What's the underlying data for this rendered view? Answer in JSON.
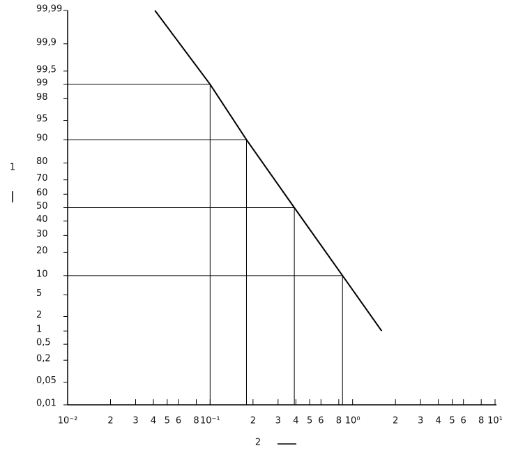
{
  "chart_data": {
    "type": "probability",
    "xlabel": "2",
    "ylabel": "1",
    "xscale": "log",
    "yscale": "probit",
    "xlim": [
      0.01,
      10
    ],
    "ylim": [
      0.01,
      99.99
    ],
    "xticks": [
      {
        "value": 0.01,
        "label": "10⁻²"
      },
      {
        "value": 0.02,
        "label": "2"
      },
      {
        "value": 0.03,
        "label": "3"
      },
      {
        "value": 0.04,
        "label": "4"
      },
      {
        "value": 0.05,
        "label": "5"
      },
      {
        "value": 0.06,
        "label": "6"
      },
      {
        "value": 0.08,
        "label": "8"
      },
      {
        "value": 0.1,
        "label": "10⁻¹"
      },
      {
        "value": 0.2,
        "label": "2"
      },
      {
        "value": 0.3,
        "label": "3"
      },
      {
        "value": 0.4,
        "label": "4"
      },
      {
        "value": 0.5,
        "label": "5"
      },
      {
        "value": 0.6,
        "label": "6"
      },
      {
        "value": 0.8,
        "label": "8"
      },
      {
        "value": 1,
        "label": "10⁰"
      },
      {
        "value": 2,
        "label": "2"
      },
      {
        "value": 3,
        "label": "3"
      },
      {
        "value": 4,
        "label": "4"
      },
      {
        "value": 5,
        "label": "5"
      },
      {
        "value": 6,
        "label": "6"
      },
      {
        "value": 8,
        "label": "8"
      },
      {
        "value": 10,
        "label": "10¹"
      }
    ],
    "yticks": [
      {
        "value": 0.01,
        "label": "0,01"
      },
      {
        "value": 0.05,
        "label": "0,05"
      },
      {
        "value": 0.2,
        "label": "0,2"
      },
      {
        "value": 0.5,
        "label": "0,5"
      },
      1,
      2,
      5,
      10,
      20,
      30,
      40,
      50,
      60,
      70,
      80,
      90,
      95,
      98,
      99,
      {
        "value": 99.5,
        "label": "99,5"
      },
      {
        "value": 99.9,
        "label": "99,9"
      },
      {
        "value": 99.99,
        "label": "99,99"
      }
    ],
    "color": "#000000",
    "line": {
      "x": [
        0.041,
        0.1,
        0.18,
        0.39,
        0.85,
        1.6
      ],
      "y": [
        99.99,
        99,
        90,
        50,
        10,
        1
      ]
    },
    "guides": {
      "x": [
        0.1,
        0.18,
        0.39,
        0.85
      ],
      "y": [
        99,
        90,
        50,
        10
      ]
    }
  }
}
